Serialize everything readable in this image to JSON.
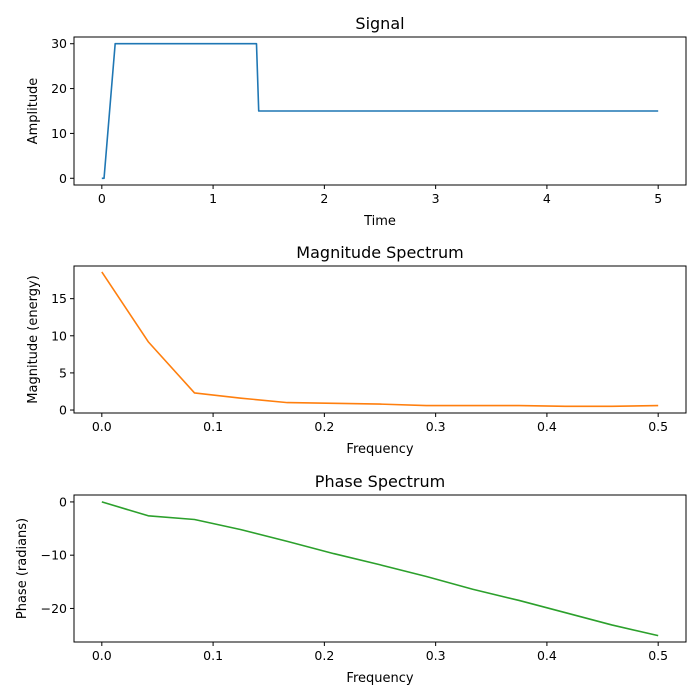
{
  "chart_data": [
    {
      "type": "line",
      "title": "Signal",
      "xlabel": "Time",
      "ylabel": "Amplitude",
      "xlim": [
        -0.25,
        5.25
      ],
      "ylim": [
        -1.5,
        31.5
      ],
      "xticks": [
        0,
        1,
        2,
        3,
        4,
        5
      ],
      "yticks": [
        0,
        10,
        20,
        30
      ],
      "grid": false,
      "color": "#1f77b4",
      "series": [
        {
          "x": [
            0,
            0.02,
            0.12,
            1.39,
            1.41,
            5
          ],
          "y": [
            0,
            0,
            30,
            30,
            15,
            15
          ]
        }
      ]
    },
    {
      "type": "line",
      "title": "Magnitude Spectrum",
      "xlabel": "Frequency",
      "ylabel": "Magnitude (energy)",
      "xlim": [
        -0.025,
        0.525
      ],
      "ylim": [
        -0.4,
        19.4
      ],
      "xticks": [
        0.0,
        0.1,
        0.2,
        0.3,
        0.4,
        0.5
      ],
      "yticks": [
        0,
        5,
        10,
        15
      ],
      "grid": false,
      "color": "#ff7f0e",
      "series": [
        {
          "x": [
            0,
            0.0417,
            0.0833,
            0.125,
            0.1667,
            0.2083,
            0.25,
            0.2917,
            0.3333,
            0.375,
            0.4167,
            0.4583,
            0.5
          ],
          "y": [
            18.6,
            9.2,
            2.3,
            1.6,
            1.0,
            0.9,
            0.8,
            0.6,
            0.6,
            0.6,
            0.5,
            0.5,
            0.6
          ]
        }
      ]
    },
    {
      "type": "line",
      "title": "Phase Spectrum",
      "xlabel": "Frequency",
      "ylabel": "Phase (radians)",
      "xlim": [
        -0.025,
        0.525
      ],
      "ylim": [
        -26.3,
        1.3
      ],
      "xticks": [
        0.0,
        0.1,
        0.2,
        0.3,
        0.4,
        0.5
      ],
      "yticks": [
        0,
        -10,
        -20
      ],
      "grid": false,
      "color": "#2ca02c",
      "series": [
        {
          "x": [
            0,
            0.0417,
            0.0833,
            0.125,
            0.1667,
            0.2083,
            0.25,
            0.2917,
            0.3333,
            0.375,
            0.4167,
            0.4583,
            0.5
          ],
          "y": [
            0,
            -2.6,
            -3.3,
            -5.2,
            -7.4,
            -9.7,
            -11.8,
            -14.0,
            -16.4,
            -18.5,
            -20.8,
            -23.1,
            -25.1
          ]
        }
      ]
    }
  ]
}
